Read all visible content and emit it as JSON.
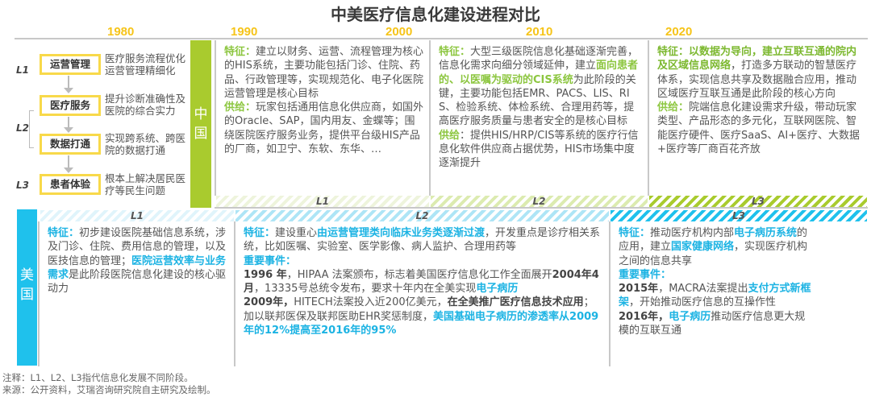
{
  "title": "中美医疗信息化建设进程对比",
  "years": [
    "1980",
    "1990",
    "2000",
    "2010",
    "2020"
  ],
  "colors": {
    "china": "#a9cb2e",
    "us": "#1fc1ec",
    "year": "#f6c419"
  },
  "legend": {
    "levels": [
      "L1",
      "L2",
      "L3"
    ],
    "boxes": [
      {
        "label": "运营管理",
        "desc": "医疗服务流程优化运营管理精细化"
      },
      {
        "label": "医疗服务",
        "desc": "提升诊断准确性及医院的综合实力"
      },
      {
        "label": "数据打通",
        "desc": "实现跨系统、跨医院的数据打通"
      },
      {
        "label": "患者体验",
        "desc": "根本上解决居民医疗等民生问题"
      }
    ]
  },
  "china": {
    "label": "中国",
    "stages": [
      "L1",
      "L2",
      "L3"
    ],
    "columns": [
      {
        "paras": [
          [
            {
              "t": "特征：",
              "s": "gl"
            },
            {
              "t": "建立以财务、运营、流程管理为核心的HIS系统，主要功能包括门诊、住院、药品、行政管理等，实现规范化、电子化医院运营管理是核心目标"
            }
          ],
          [
            {
              "t": "供给：",
              "s": "gl"
            },
            {
              "t": "玩家包括通用信息化供应商，如国外的Oracle、SAP，国内用友、金蝶等；围绕医院医疗服务业务，提供平台级HIS产品的厂商，如卫宁、东软、东华、…"
            }
          ]
        ]
      },
      {
        "paras": [
          [
            {
              "t": "特征：",
              "s": "gl"
            },
            {
              "t": "大型三级医院信息化基础逐渐完善，信息化需求向细分领域延伸，建立"
            },
            {
              "t": "面向患者的、以医嘱为驱动的CIS系统",
              "s": "gl"
            },
            {
              "t": "为此阶段的关键，主要功能包括EMR、PACS、LIS、RIS、检验系统、体检系统、合理用药等，提高医疗服务质量与患者安全的是核心目标"
            }
          ],
          [
            {
              "t": "供给",
              "s": "gl"
            },
            {
              "t": "：提供HIS/HRP/CIS等系统的医疗行信息化软件供应商占据优势，HIS市场集中度逐渐提升"
            }
          ]
        ]
      },
      {
        "paras": [
          [
            {
              "t": "特征：以数据为导向，建立互联互通的院内及区域信息网络",
              "s": "gb"
            },
            {
              "t": "，打造多方联动的智慧医疗体系，实现信息共享及数据融合应用，推动区域医疗互联互通是此阶段的核心方向"
            }
          ],
          [
            {
              "t": "供给：",
              "s": "gl"
            },
            {
              "t": "院端信息化建设需求升级，带动玩家类型、产品形态的多元化，互联网医院、智能医疗硬件、医疗SaaS、AI+医疗、大数据+医疗等厂商百花齐放"
            }
          ]
        ]
      }
    ]
  },
  "us": {
    "label": "美国",
    "stages": [
      "L1",
      "L2",
      "L3"
    ],
    "columns": [
      {
        "paras": [
          [
            {
              "t": "特征：",
              "s": "bl"
            },
            {
              "t": "初步建设医院基础信息系统，涉及门诊、住院、费用信息的管理，以及医技信息的管理；"
            },
            {
              "t": "医院运营效率与业务需求",
              "s": "bl"
            },
            {
              "t": "是此阶段医院信息化建设的核心驱动力"
            }
          ]
        ]
      },
      {
        "paras": [
          [
            {
              "t": "特征：",
              "s": "bl"
            },
            {
              "t": "建设重心"
            },
            {
              "t": "由运营管理类向临床业务类逐渐过渡",
              "s": "bl"
            },
            {
              "t": "，开发重点是诊疗相关系统，比如医嘱、实验室、医学影像、病人监护、合理用药等"
            }
          ],
          [
            {
              "t": "重要事件：",
              "s": "bl"
            }
          ],
          [
            {
              "t": "1996 年",
              "s": "bk"
            },
            {
              "t": "，HIPAA 法案颁布，标志着美国医疗信息化工作全面展开"
            },
            {
              "t": "2004年4月",
              "s": "bk"
            },
            {
              "t": "，13335号总统令发布，要求十年内在全美实现"
            },
            {
              "t": "电子病历",
              "s": "bl"
            }
          ],
          [
            {
              "t": "2009年，",
              "s": "bk"
            },
            {
              "t": "HITECH法案投入近200亿美元，"
            },
            {
              "t": "在全美推广医疗信息技术应用",
              "s": "bk"
            },
            {
              "t": "；加以联邦医保及联邦医助EHR奖惩制度，"
            },
            {
              "t": "美国基础电子病历的渗透率从2009年的12%提高至2016年的95%",
              "s": "bl"
            }
          ]
        ]
      },
      {
        "paras": [
          [
            {
              "t": "特征：",
              "s": "bl"
            },
            {
              "t": "推动医疗机构内部"
            },
            {
              "t": "电子病历系统",
              "s": "bl"
            },
            {
              "t": "的应用，建立"
            },
            {
              "t": "国家健康网络",
              "s": "bl"
            },
            {
              "t": "，实现医疗机构之间的信息共享"
            }
          ],
          [
            {
              "t": "重要事件：",
              "s": "bl"
            }
          ],
          [
            {
              "t": "2015年",
              "s": "bk"
            },
            {
              "t": "，MACRA法案提出"
            },
            {
              "t": "支付方式新框架",
              "s": "bl"
            },
            {
              "t": "，开始推动医疗信息的互操作性"
            }
          ],
          [
            {
              "t": "2016年，",
              "s": "bk"
            },
            {
              "t": "电子病历",
              "s": "bl"
            },
            {
              "t": "推动医疗信息更大规模的互联互通"
            }
          ]
        ]
      }
    ]
  },
  "notes": [
    "注释：L1、L2、L3指代信息化发展不同阶段。",
    "来源：公开资料，艾瑞咨询研究院自主研究及绘制。"
  ]
}
